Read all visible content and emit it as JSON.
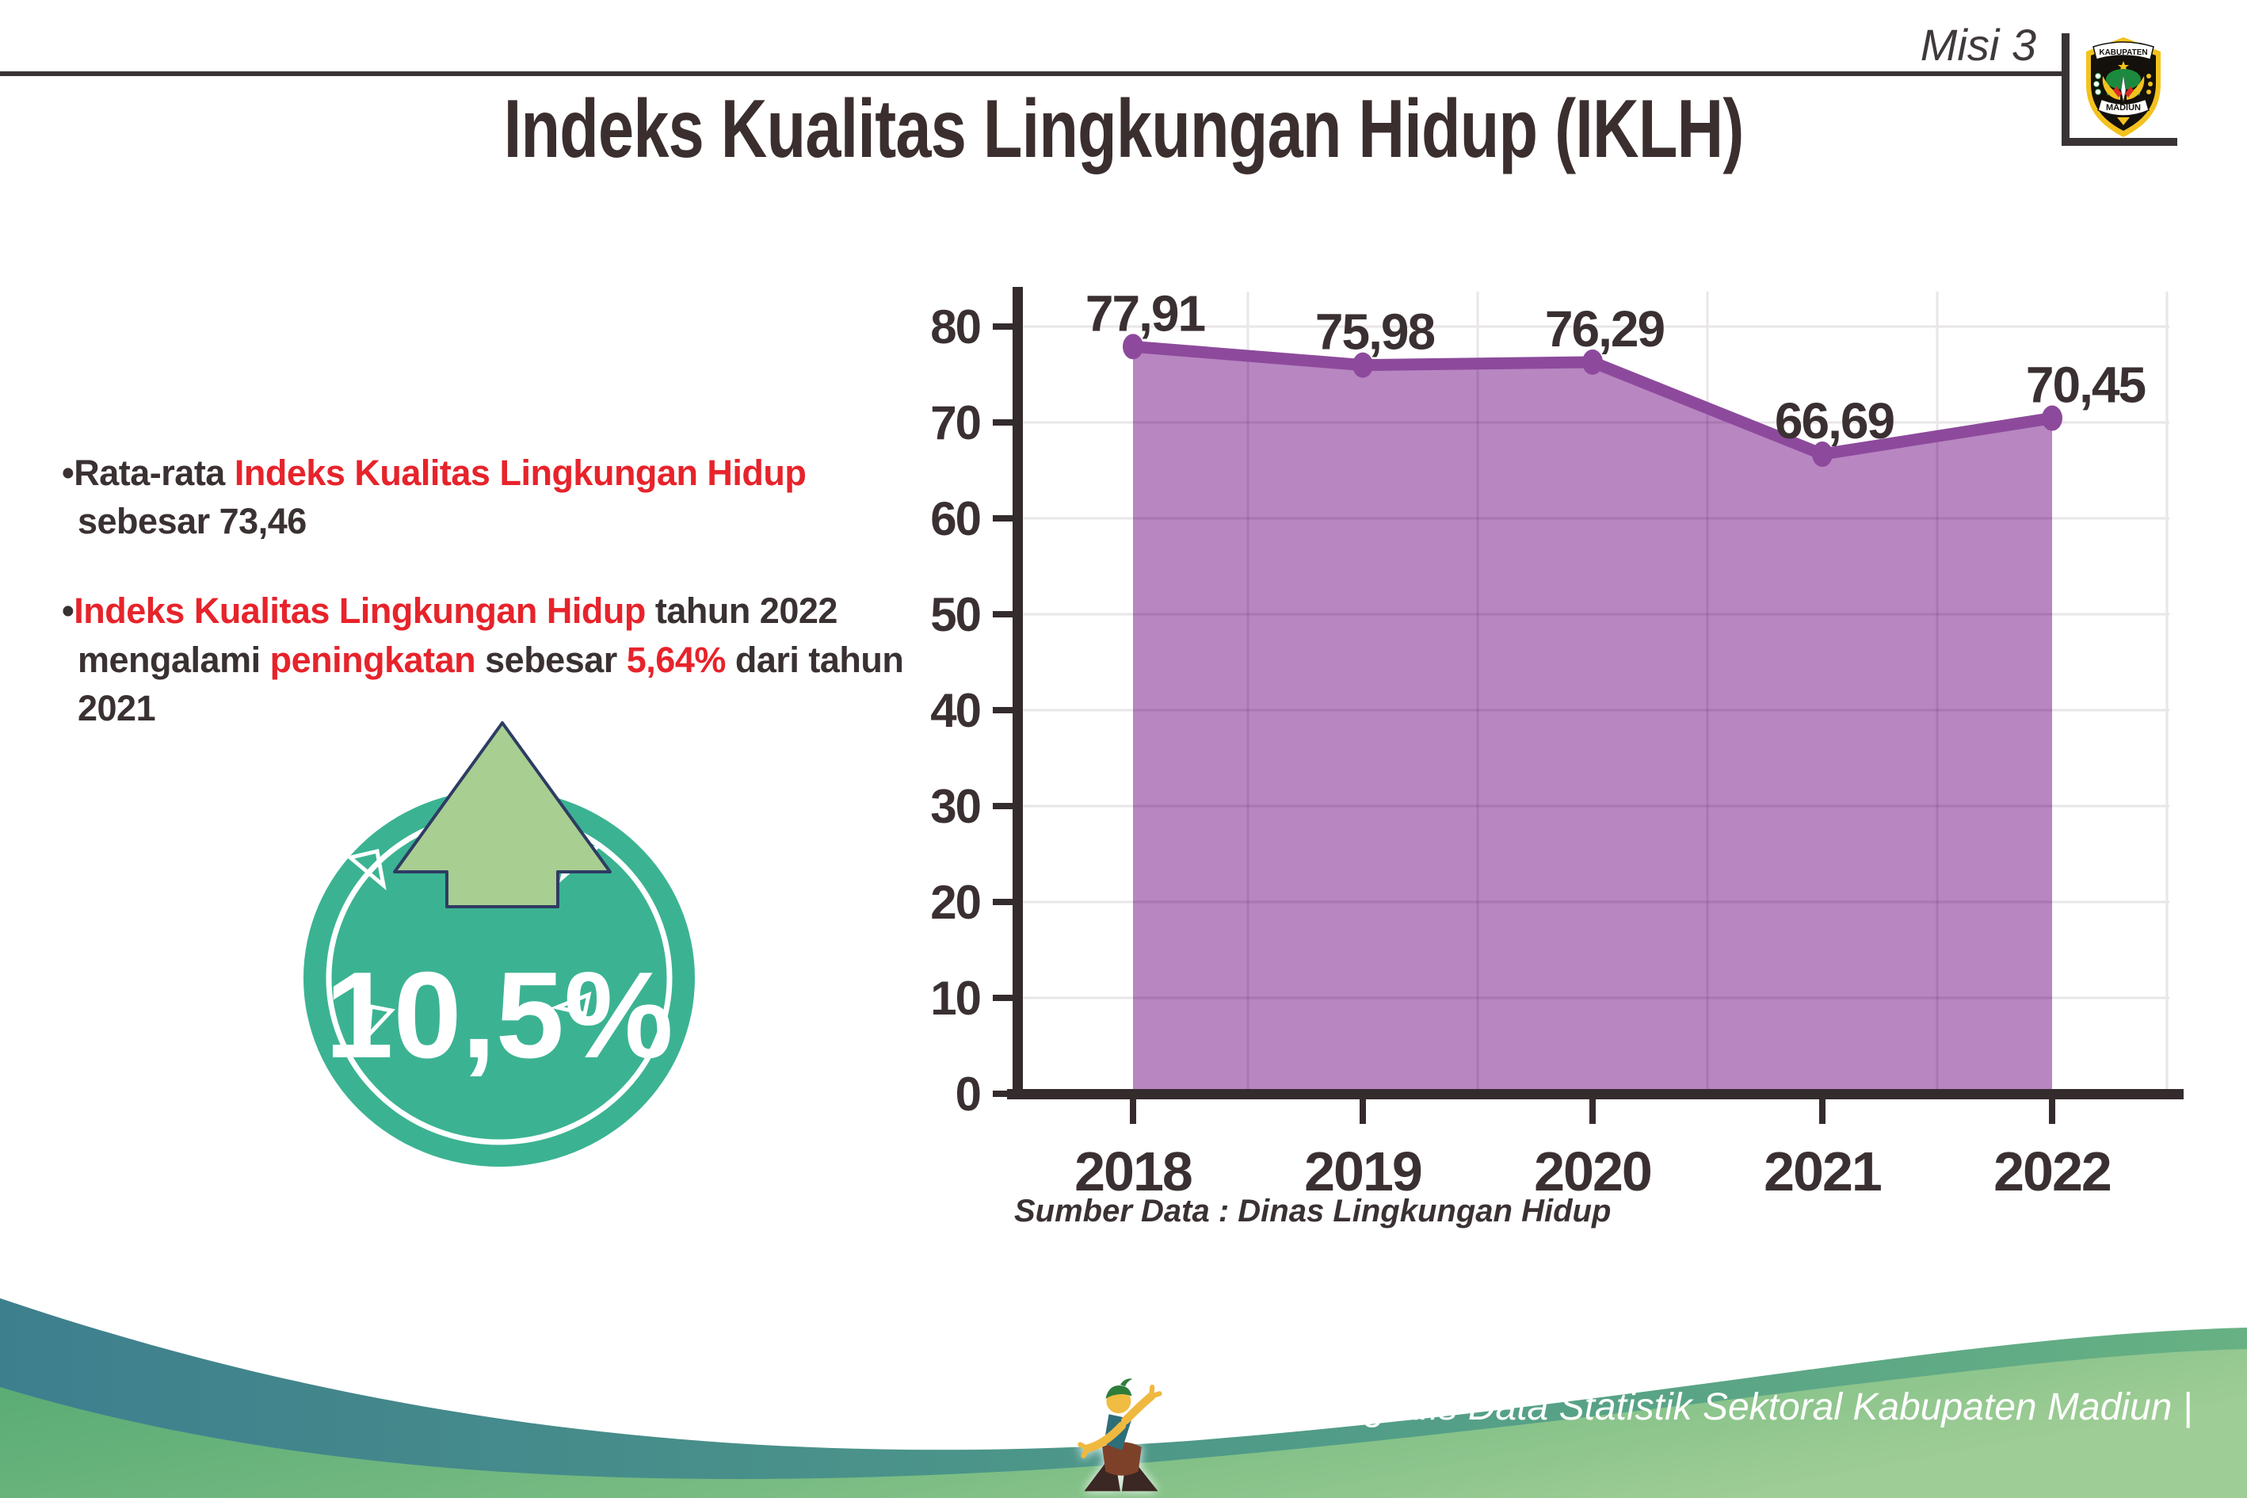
{
  "header": {
    "misi_label": "Misi 3",
    "logo": {
      "top_text": "KABUPATEN",
      "bottom_text": "MADIUN"
    }
  },
  "title": "Indeks Kualitas Lingkungan Hidup (IKLH)",
  "bullets": {
    "glyph": "•",
    "b1": {
      "s1": "Rata-rata ",
      "s2": "Indeks Kualitas Lingkungan Hidup",
      "s3": " sebesar 73,46"
    },
    "b2": {
      "s1": "Indeks Kualitas Lingkungan Hidup",
      "s2": " tahun 2022 mengalami ",
      "s3": "peningkatan",
      "s4": " sebesar ",
      "s5": "5,64%",
      "s6": " dari tahun 2021"
    }
  },
  "badge": {
    "value": "10,5%"
  },
  "chart_data": {
    "type": "area",
    "title": "",
    "xlabel": "",
    "ylabel": "",
    "categories": [
      "2018",
      "2019",
      "2020",
      "2021",
      "2022"
    ],
    "series": [
      {
        "name": "IKLH",
        "values": [
          77.91,
          75.98,
          76.29,
          66.69,
          70.45
        ]
      }
    ],
    "value_labels": [
      "77,91",
      "75,98",
      "76,29",
      "66,69",
      "70,45"
    ],
    "ylim": [
      0,
      85
    ],
    "yticks": [
      0,
      10,
      20,
      30,
      40,
      50,
      60,
      70,
      80
    ],
    "grid": true,
    "legend": "none",
    "line_color": "#8d4a9c",
    "fill_color": "#b886c1",
    "axis_color": "#342b2d",
    "grid_color": "#e9e6e8",
    "label_color": "#3a3032"
  },
  "source": "Sumber Data : Dinas Lingkungan Hidup",
  "footer": {
    "text": "Media Infografis Data Statistik Sektoral Kabupaten Madiun |"
  },
  "colors": {
    "accent_red": "#e7232b",
    "text_dark": "#3a3132",
    "badge_teal": "#3bb392",
    "arrow_green": "#a9ce91",
    "arrow_outline_navy": "#2e3c63",
    "line_purple": "#8d4a9c",
    "area_purple": "#b886c1",
    "footer_teal": "#41808e",
    "footer_green": "#5fae7c"
  }
}
